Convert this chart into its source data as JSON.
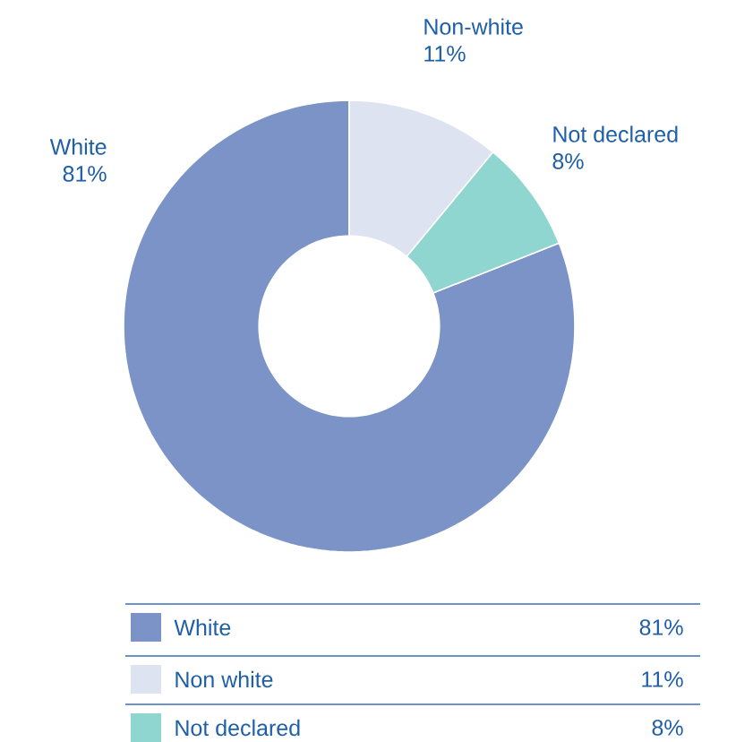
{
  "chart_data": {
    "type": "donut",
    "categories": [
      "White",
      "Non white",
      "Not declared"
    ],
    "values": [
      81,
      11,
      8
    ],
    "colors": [
      "#7b93c6",
      "#dde3f0",
      "#8fd5d0"
    ],
    "value_labels": [
      "81%",
      "11%",
      "8%"
    ],
    "legend": "bottom",
    "annotations": [
      "White",
      "Non-white",
      "Not declared"
    ]
  }
}
